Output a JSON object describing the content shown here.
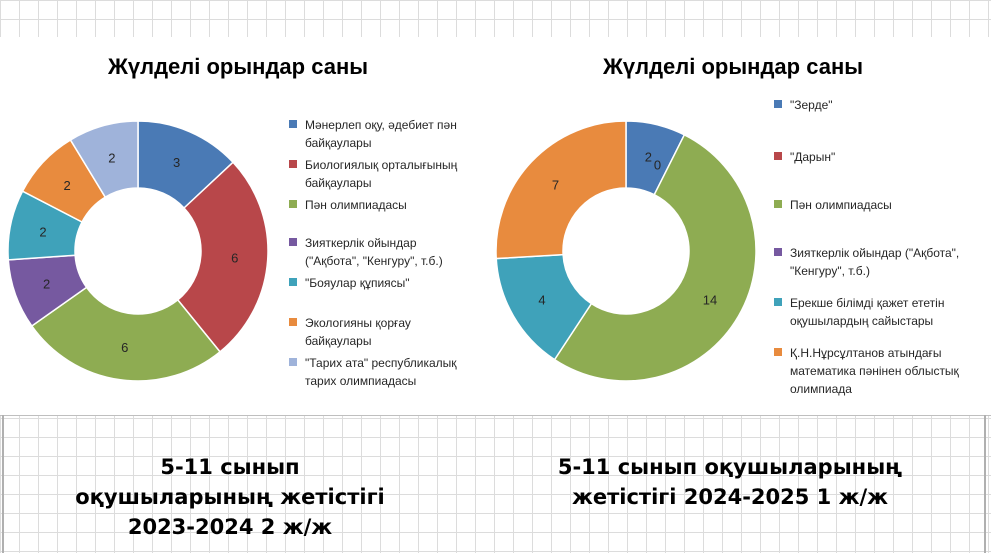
{
  "chart_data": [
    {
      "type": "pie",
      "variant": "doughnut",
      "title": "Жүлделі орындар саны",
      "categories": [
        "Мәнерлеп оқу, әдебиет пән байқаулары",
        "Биологиялық орталығының байқаулары",
        "Пән олимпиадасы",
        "Зияткерлік ойындар (\"Ақбота\", \"Кенгуру\", т.б.)",
        "\"Бояулар құпиясы\"",
        "Экологияны қорғау байқаулары",
        "\"Тарих ата\" республикалық тарих олимпиадасы"
      ],
      "legend_lines": [
        [
          "Мәнерлеп оқу, әдебиет пән",
          "байқаулары"
        ],
        [
          "Биологиялық орталығының",
          "байқаулары"
        ],
        [
          "Пән олимпиадасы"
        ],
        [
          "Зияткерлік ойындар",
          "(\"Ақбота\", \"Кенгуру\", т.б.)"
        ],
        [
          "\"Бояулар құпиясы\""
        ],
        [
          "Экологияны қорғау",
          "байқаулары"
        ],
        [
          "\"Тарих ата\" республикалық",
          "тарих олимпиадасы"
        ]
      ],
      "values": [
        3,
        6,
        6,
        2,
        2,
        2,
        2
      ],
      "labels": [
        "3",
        "6",
        "6",
        "2",
        "2",
        "2",
        "2"
      ],
      "colors": [
        "#4a7ab5",
        "#b8474a",
        "#8eac52",
        "#7659a0",
        "#3fa2ba",
        "#e88b3e",
        "#9fb3da"
      ],
      "legend_position": "right"
    },
    {
      "type": "pie",
      "variant": "doughnut",
      "title": "Жүлделі орындар саны",
      "categories": [
        "\"Зерде\"",
        "\"Дарын\"",
        "Пән олимпиадасы",
        "Зияткерлік ойындар (\"Ақбота\", \"Кенгуру\", т.б.)",
        "Ерекше білімді қажет ететін оқушылардың сайыстары",
        "Қ.Н.Нұрсұлтанов атындағы математика пәнінен облыстық олимпиада"
      ],
      "legend_lines": [
        [
          "\"Зерде\""
        ],
        [
          "\"Дарын\""
        ],
        [
          "Пән олимпиадасы"
        ],
        [
          "Зияткерлік ойындар (\"Ақбота\",",
          "\"Кенгуру\", т.б.)"
        ],
        [
          "Ерекше білімді қажет ететін",
          "оқушылардың сайыстары"
        ],
        [
          "Қ.Н.Нұрсұлтанов атындағы",
          "математика пәнінен облыстық",
          "олимпиада"
        ]
      ],
      "values": [
        2,
        0,
        14,
        0,
        4,
        7
      ],
      "labels": [
        "2",
        "0",
        "14",
        "0",
        "4",
        "7"
      ],
      "colors": [
        "#4a7ab5",
        "#b8474a",
        "#8eac52",
        "#7659a0",
        "#3fa2ba",
        "#e88b3e"
      ],
      "legend_position": "right"
    }
  ],
  "captions": {
    "left": [
      "5-11 сынып",
      "оқушыларының  жетістігі",
      "2023-2024 2 ж/ж"
    ],
    "right": [
      "5-11 сынып оқушыларының",
      "жетістігі  2024-2025 1 ж/ж"
    ]
  }
}
